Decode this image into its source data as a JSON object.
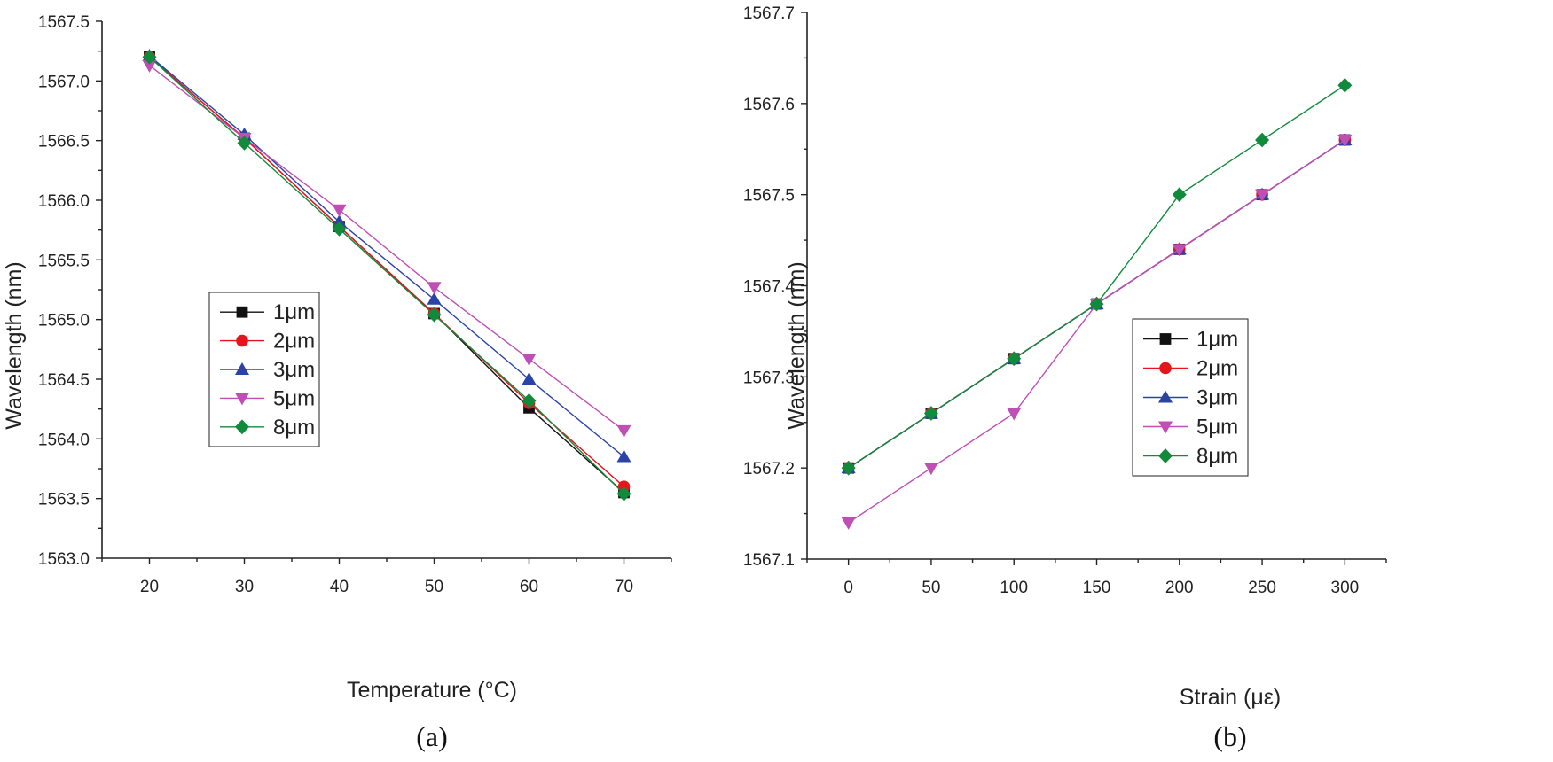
{
  "chart_data": [
    {
      "type": "line",
      "panel_label": "(a)",
      "xlabel": "Temperature (°C)",
      "ylabel": "Wavelength (nm)",
      "xlim": [
        15,
        75
      ],
      "ylim": [
        1563.0,
        1567.5
      ],
      "x_ticks": [
        20,
        30,
        40,
        50,
        60,
        70
      ],
      "x_tick_labels": [
        "20",
        "30",
        "40",
        "50",
        "60",
        "70"
      ],
      "y_ticks": [
        1563.0,
        1563.5,
        1564.0,
        1564.5,
        1565.0,
        1565.5,
        1566.0,
        1566.5,
        1567.0,
        1567.5
      ],
      "y_tick_labels": [
        "1563.0",
        "1563.5",
        "1564.0",
        "1564.5",
        "1565.0",
        "1565.5",
        "1566.0",
        "1566.5",
        "1567.0",
        "1567.5"
      ],
      "legend_position": "center-left",
      "series": [
        {
          "name": "1μm",
          "color": "#111111",
          "marker": "square",
          "x": [
            20,
            30,
            40,
            50,
            60,
            70
          ],
          "y": [
            1567.2,
            1566.52,
            1565.78,
            1565.05,
            1564.26,
            1563.55
          ]
        },
        {
          "name": "2μm",
          "color": "#e8141b",
          "marker": "circle",
          "x": [
            20,
            30,
            40,
            50,
            60,
            70
          ],
          "y": [
            1567.2,
            1566.52,
            1565.78,
            1565.05,
            1564.3,
            1563.6
          ]
        },
        {
          "name": "3μm",
          "color": "#2b43a7",
          "marker": "triangle-up",
          "x": [
            20,
            30,
            40,
            50,
            60,
            70
          ],
          "y": [
            1567.21,
            1566.55,
            1565.82,
            1565.17,
            1564.5,
            1563.85
          ]
        },
        {
          "name": "5μm",
          "color": "#c04fb5",
          "marker": "triangle-down",
          "x": [
            20,
            30,
            40,
            50,
            60,
            70
          ],
          "y": [
            1567.13,
            1566.52,
            1565.92,
            1565.27,
            1564.67,
            1564.07
          ]
        },
        {
          "name": "8μm",
          "color": "#128a3b",
          "marker": "diamond",
          "x": [
            20,
            30,
            40,
            50,
            60,
            70
          ],
          "y": [
            1567.2,
            1566.48,
            1565.76,
            1565.04,
            1564.32,
            1563.54
          ]
        }
      ]
    },
    {
      "type": "line",
      "panel_label": "(b)",
      "xlabel": "Strain (με)",
      "ylabel": "Wavelength (nm)",
      "xlim": [
        -25,
        325
      ],
      "ylim": [
        1567.1,
        1567.7
      ],
      "x_ticks": [
        0,
        50,
        100,
        150,
        200,
        250,
        300
      ],
      "x_tick_labels": [
        "0",
        "50",
        "100",
        "150",
        "200",
        "250",
        "300"
      ],
      "y_ticks": [
        1567.1,
        1567.2,
        1567.3,
        1567.4,
        1567.5,
        1567.6,
        1567.7
      ],
      "y_tick_labels": [
        "1567.1",
        "1567.2",
        "1567.3",
        "1567.4",
        "1567.5",
        "1567.6",
        "1567.7"
      ],
      "legend_position": "center-right",
      "series": [
        {
          "name": "1μm",
          "color": "#111111",
          "marker": "square",
          "x": [
            0,
            50,
            100,
            150,
            200,
            250,
            300
          ],
          "y": [
            1567.2,
            1567.26,
            1567.32,
            1567.38,
            1567.44,
            1567.5,
            1567.56
          ]
        },
        {
          "name": "2μm",
          "color": "#e8141b",
          "marker": "circle",
          "x": [
            0,
            50,
            100,
            150,
            200,
            250,
            300
          ],
          "y": [
            1567.2,
            1567.26,
            1567.32,
            1567.38,
            1567.44,
            1567.5,
            1567.56
          ]
        },
        {
          "name": "3μm",
          "color": "#2b43a7",
          "marker": "triangle-up",
          "x": [
            0,
            50,
            100,
            150,
            200,
            250,
            300
          ],
          "y": [
            1567.2,
            1567.26,
            1567.32,
            1567.38,
            1567.44,
            1567.5,
            1567.56
          ]
        },
        {
          "name": "5μm",
          "color": "#c04fb5",
          "marker": "triangle-down",
          "x": [
            0,
            50,
            100,
            150,
            200,
            250,
            300
          ],
          "y": [
            1567.14,
            1567.2,
            1567.26,
            1567.38,
            1567.44,
            1567.5,
            1567.56
          ]
        },
        {
          "name": "8μm",
          "color": "#128a3b",
          "marker": "diamond",
          "x": [
            0,
            50,
            100,
            150,
            200,
            250,
            300
          ],
          "y": [
            1567.2,
            1567.26,
            1567.32,
            1567.38,
            1567.5,
            1567.56,
            1567.62
          ]
        }
      ]
    }
  ]
}
